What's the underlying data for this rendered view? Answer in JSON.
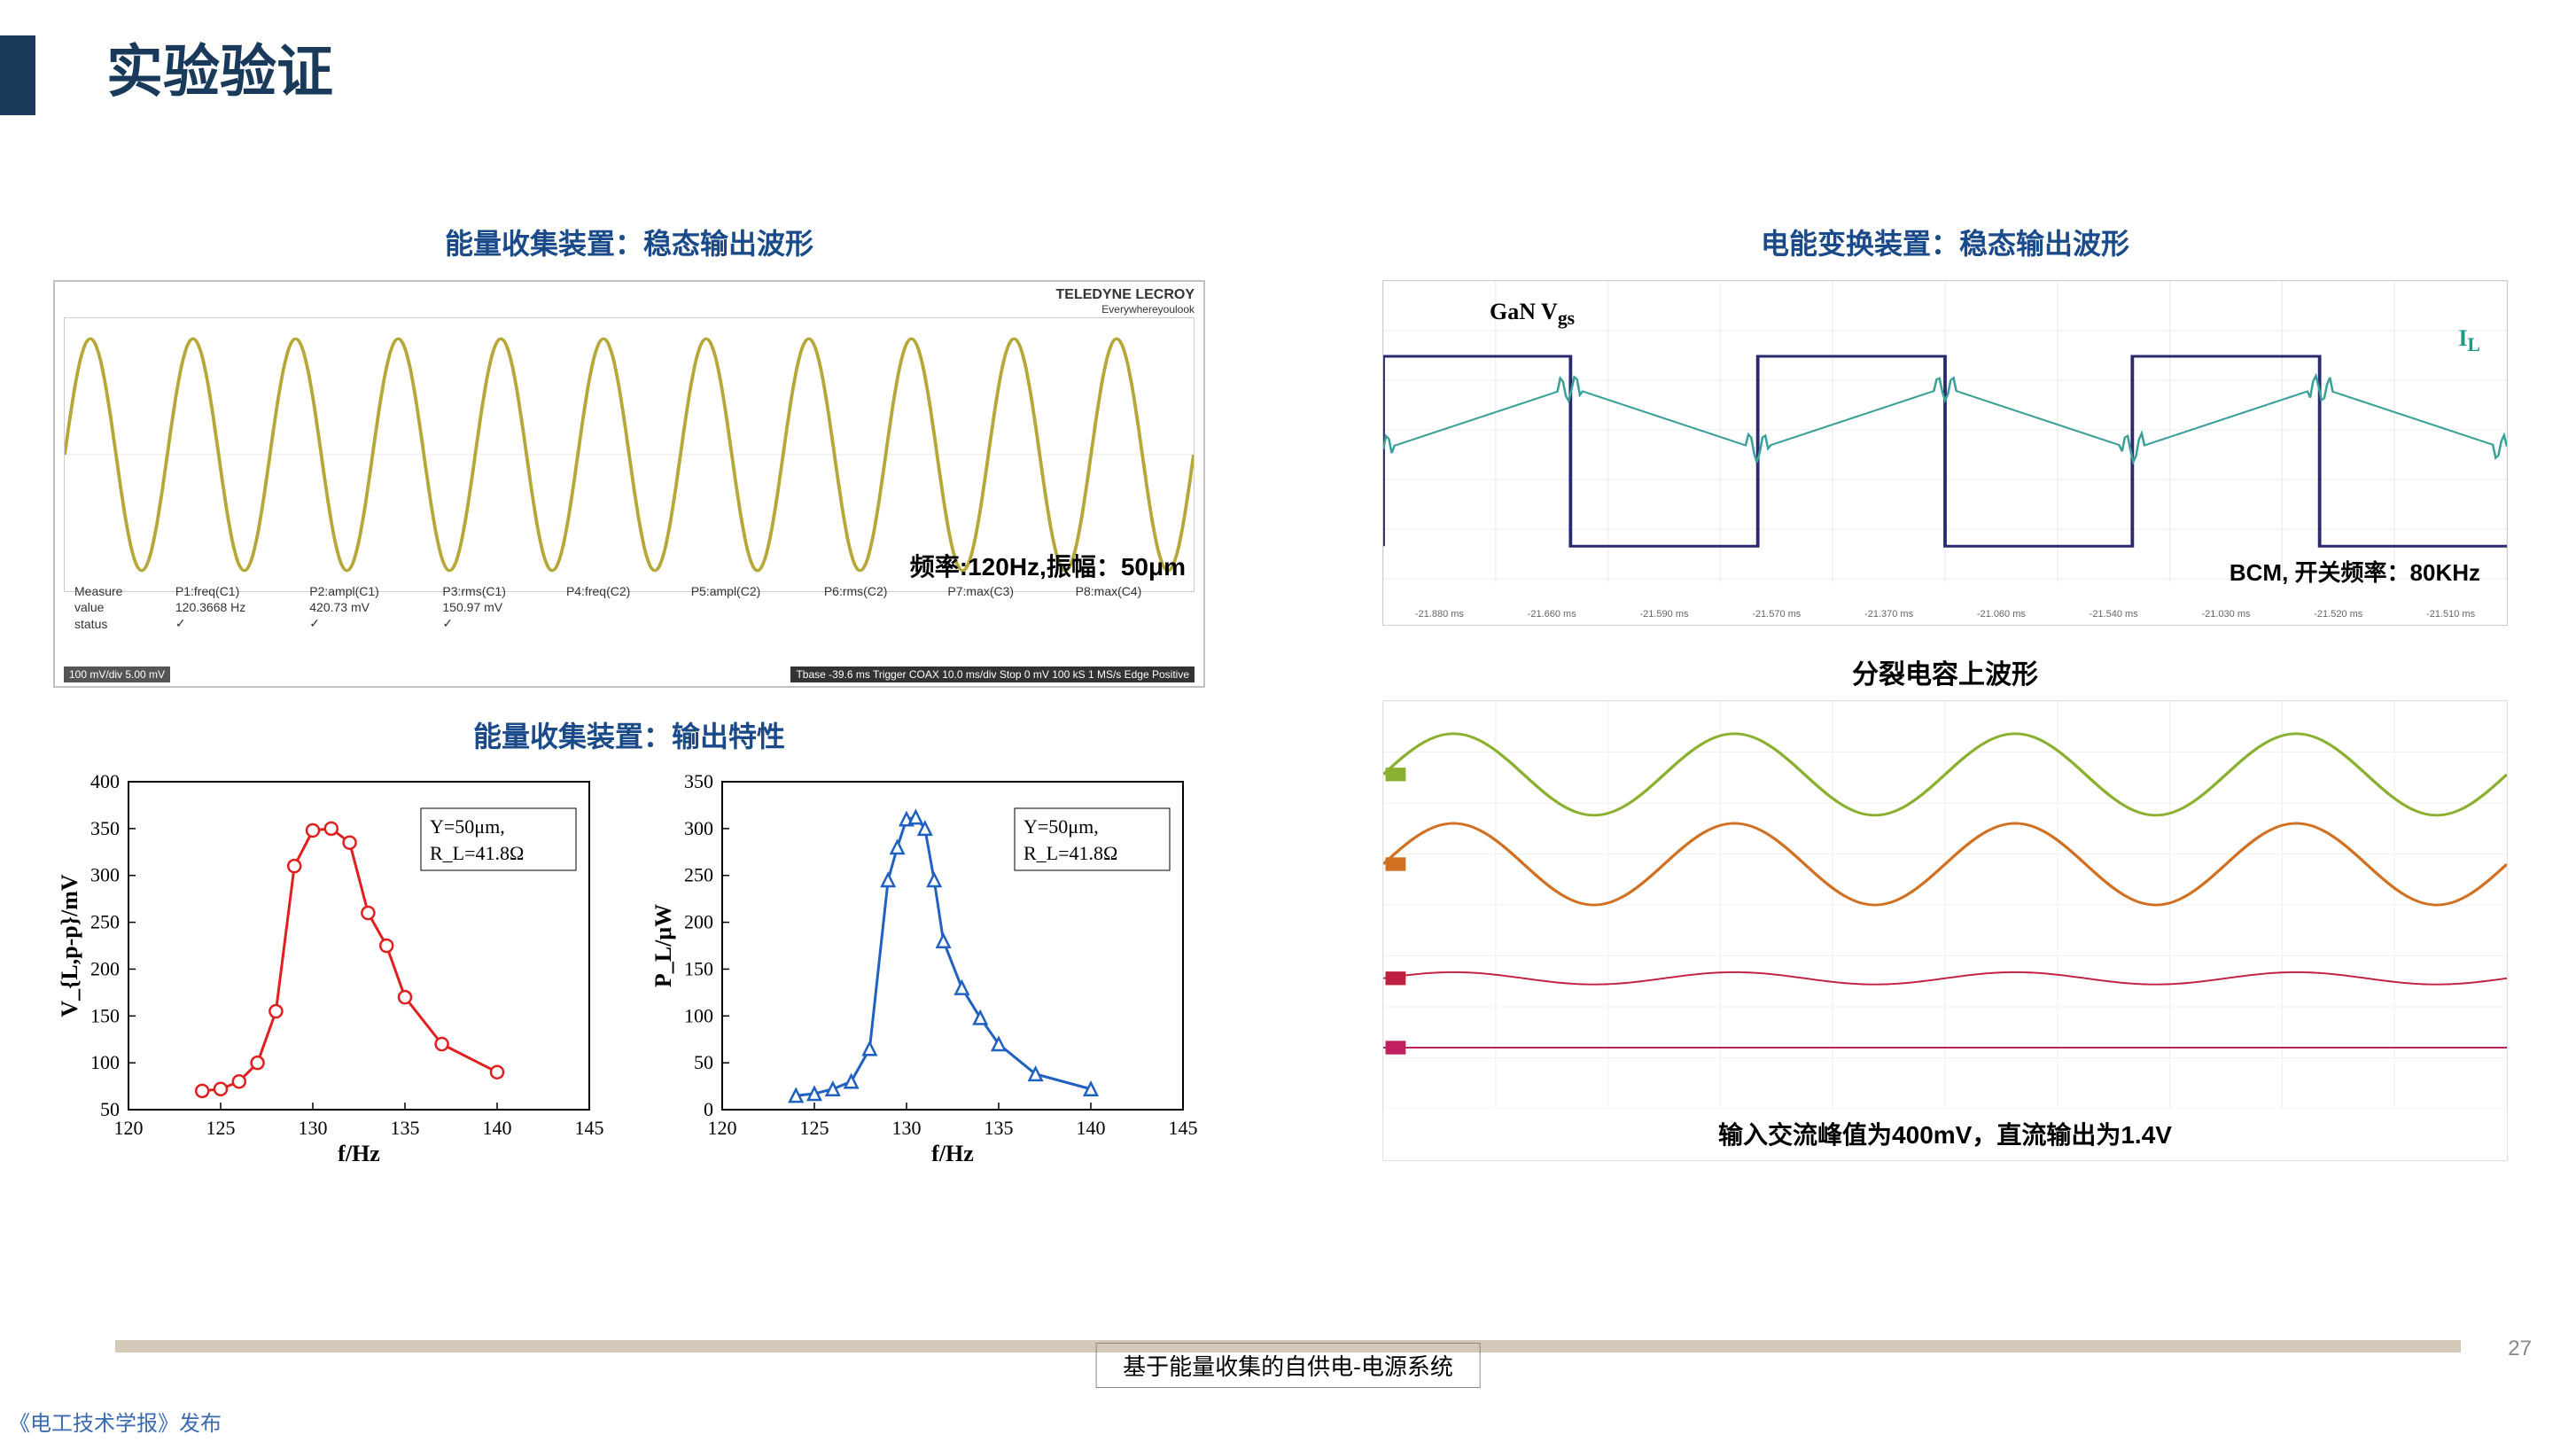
{
  "title": "实验验证",
  "left": {
    "title1": "能量收集装置：稳态输出波形",
    "scope": {
      "brand_top": "TELEDYNE LECROY",
      "brand_sub": "Everywhereyoulook",
      "caption": "频率:120Hz,振幅：50μm",
      "wave": {
        "cycles": 11,
        "amplitude": 0.85,
        "color": "#b5a838",
        "stroke_width": 3
      },
      "measure_headers": [
        "Measure",
        "P1:freq(C1)",
        "P2:ampl(C1)",
        "P3:rms(C1)",
        "P4:freq(C2)",
        "P5:ampl(C2)",
        "P6:rms(C2)",
        "P7:max(C3)",
        "P8:max(C4)"
      ],
      "measure_values": [
        "value",
        "120.3668 Hz",
        "420.73 mV",
        "150.97 mV",
        "",
        "",
        "",
        "",
        ""
      ],
      "measure_status": [
        "status",
        "✓",
        "✓",
        "✓",
        "",
        "",
        "",
        "",
        ""
      ],
      "footer_left": "100 mV/div  5.00 mV",
      "footer_right": "Tbase -39.6 ms  Trigger COAX  10.0 ms/div Stop  0 mV  100 kS  1 MS/s  Edge Positive"
    },
    "title2": "能量收集装置：输出特性",
    "chart_common": {
      "xlim": [
        120,
        145
      ],
      "xticks": [
        120,
        125,
        130,
        135,
        140,
        145
      ],
      "xlabel": "f/Hz",
      "legend": "Y=50μm,\nR_L=41.8Ω",
      "tick_fontsize": 22,
      "label_fontsize": 26,
      "grid_color": "#ffffff",
      "bg_color": "#ffffff",
      "axis_color": "#000000"
    },
    "chart1": {
      "ylabel": "V_{L,p-p}/mV",
      "ylim": [
        50,
        400
      ],
      "yticks": [
        50,
        100,
        150,
        200,
        250,
        300,
        350,
        400
      ],
      "series": {
        "color": "#e02020",
        "marker": "circle",
        "marker_size": 7,
        "line_width": 3,
        "x": [
          124,
          125,
          126,
          127,
          128,
          129,
          130,
          131,
          132,
          133,
          134,
          135,
          137,
          140
        ],
        "y": [
          70,
          72,
          80,
          100,
          155,
          310,
          348,
          350,
          335,
          260,
          225,
          170,
          120,
          90
        ]
      }
    },
    "chart2": {
      "ylabel": "P_L/μW",
      "ylim": [
        0,
        350
      ],
      "yticks": [
        0,
        50,
        100,
        150,
        200,
        250,
        300,
        350
      ],
      "series": {
        "color": "#2060c0",
        "marker": "triangle",
        "marker_size": 7,
        "line_width": 3,
        "x": [
          124,
          125,
          126,
          127,
          128,
          129,
          129.5,
          130,
          130.5,
          131,
          131.5,
          132,
          133,
          134,
          135,
          137,
          140
        ],
        "y": [
          15,
          17,
          22,
          30,
          65,
          245,
          280,
          310,
          312,
          300,
          245,
          180,
          130,
          98,
          70,
          38,
          22
        ]
      }
    }
  },
  "right": {
    "title": "电能变换装置：稳态输出波形",
    "top_scope": {
      "gan_label": "GaN V_gs",
      "il_label": "I_L",
      "bcm_label": "BCM, 开关频率：80KHz",
      "square": {
        "color": "#2a2a70",
        "periods": 3,
        "high": 0.25,
        "low": 0.88,
        "stroke_width": 3
      },
      "current": {
        "color": "#3aa098",
        "stroke_width": 2
      },
      "x_labels": [
        "-21.880 ms",
        "-21.660 ms",
        "-21.590 ms",
        "-21.570 ms",
        "-21.370 ms",
        "-21.060 ms",
        "-21.540 ms",
        "-21.030 ms",
        "-21.520 ms",
        "-21.510 ms"
      ]
    },
    "mid_title": "分裂电容上波形",
    "mid_scope": {
      "waves": [
        {
          "color": "#8ab030",
          "y": 0.18,
          "amp": 0.1,
          "cycles": 4,
          "width": 3
        },
        {
          "color": "#d07020",
          "y": 0.4,
          "amp": 0.1,
          "cycles": 4,
          "width": 3
        },
        {
          "color": "#c02040",
          "y": 0.68,
          "amp": 0.015,
          "cycles": 4,
          "width": 2
        },
        {
          "color": "#c02060",
          "y": 0.85,
          "amp": 0.0,
          "cycles": 0,
          "width": 2
        }
      ],
      "caption": "输入交流峰值为400mV，直流输出为1.4V"
    }
  },
  "footer": {
    "box": "基于能量收集的自供电-电源系统",
    "page": "27",
    "watermark": "《电工技术学报》发布"
  }
}
